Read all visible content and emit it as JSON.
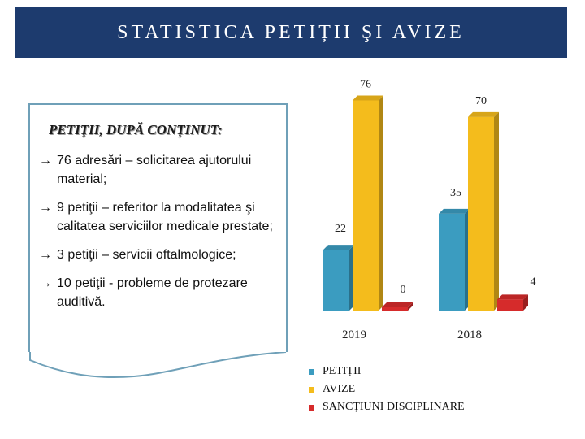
{
  "header": {
    "title": "STATISTICA PETIȚII ŞI AVIZE"
  },
  "note": {
    "heading": "PETIŢII, DUPĂ CONȚINUT:",
    "arrow": "→",
    "items": [
      "76 adresări – solicitarea ajutorului material;",
      "9 petiţii – referitor la modalitatea şi calitatea serviciilor medicale prestate;",
      "3 petiţii – servicii oftalmologice;",
      "10 petiţii - probleme de protezare auditivă."
    ]
  },
  "chart_data": {
    "type": "bar",
    "categories": [
      "2019",
      "2018"
    ],
    "series": [
      {
        "name": "PETIȚII",
        "values": [
          22,
          35
        ],
        "color": "#3b9cc0"
      },
      {
        "name": "AVIZE",
        "values": [
          76,
          70
        ],
        "color": "#f4bc1c"
      },
      {
        "name": "SANCȚIUNI DISCIPLINARE",
        "values": [
          0,
          4
        ],
        "color": "#d62b2b"
      }
    ],
    "ylim": [
      0,
      80
    ],
    "grid": false,
    "legend": "bottom-left",
    "title": "",
    "xlabel": "",
    "ylabel": ""
  }
}
